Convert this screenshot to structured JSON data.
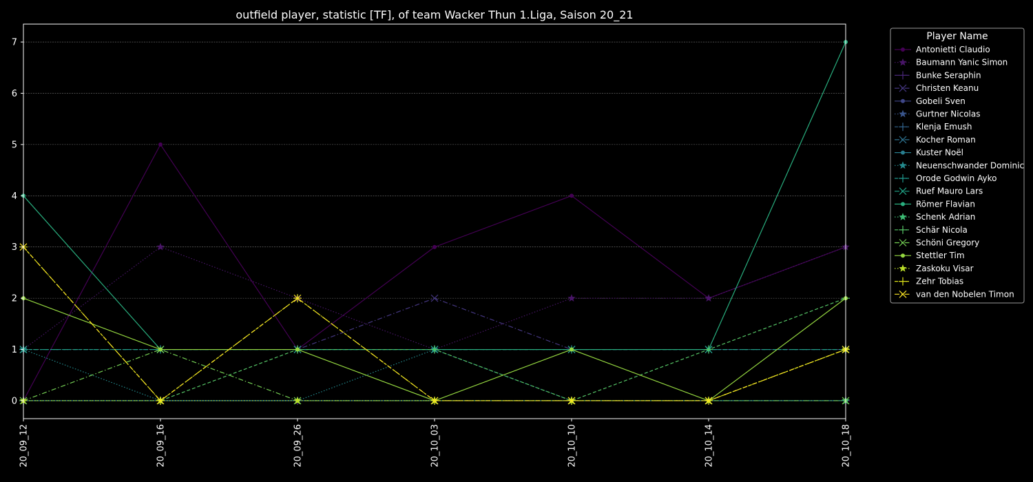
{
  "chart_data": {
    "type": "line",
    "title": "outfield player, statistic [TF], of team Wacker Thun 1.Liga, Saison 20_21",
    "xlabel": "",
    "ylabel": "",
    "categories": [
      "20_09_12",
      "20_09_16",
      "20_09_26",
      "20_10_03",
      "20_10_10",
      "20_10_14",
      "20_10_18"
    ],
    "ylim": [
      -0.35,
      7.35
    ],
    "yticks": [
      0,
      1,
      2,
      3,
      4,
      5,
      6,
      7
    ],
    "grid": "horizontal",
    "legend_title": "Player Name",
    "legend_position": "outside-right",
    "series": [
      {
        "name": "Antonietti Claudio",
        "values": [
          0,
          5,
          1,
          3,
          4,
          2,
          3
        ],
        "color": "#440154",
        "marker": "circle",
        "dash": "solid"
      },
      {
        "name": "Baumann Yanic Simon",
        "values": [
          1,
          3,
          2,
          1,
          2,
          2,
          3
        ],
        "color": "#481567",
        "marker": "star",
        "dash": "dotted"
      },
      {
        "name": "Bunke Seraphin",
        "values": [
          0,
          0,
          0,
          0,
          0,
          0,
          0
        ],
        "color": "#482677",
        "marker": "plus",
        "dash": "dashdot"
      },
      {
        "name": "Christen Keanu",
        "values": [
          1,
          1,
          1,
          2,
          1,
          1,
          1
        ],
        "color": "#453781",
        "marker": "x",
        "dash": "dashdot"
      },
      {
        "name": "Gobeli Sven",
        "values": [
          0,
          0,
          0,
          0,
          0,
          0,
          0
        ],
        "color": "#3f4788",
        "marker": "circle",
        "dash": "solid"
      },
      {
        "name": "Gurtner Nicolas",
        "values": [
          0,
          0,
          0,
          0,
          0,
          0,
          0
        ],
        "color": "#39558c",
        "marker": "star",
        "dash": "dotted"
      },
      {
        "name": "Klenja Emush",
        "values": [
          1,
          1,
          1,
          1,
          1,
          1,
          1
        ],
        "color": "#32648e",
        "marker": "plus",
        "dash": "dashed"
      },
      {
        "name": "Kocher Roman",
        "values": [
          1,
          1,
          1,
          1,
          1,
          1,
          1
        ],
        "color": "#2d718e",
        "marker": "x",
        "dash": "dashdot"
      },
      {
        "name": "Kuster Noël",
        "values": [
          0,
          0,
          0,
          0,
          0,
          0,
          0
        ],
        "color": "#287d8e",
        "marker": "circle",
        "dash": "solid"
      },
      {
        "name": "Neuenschwander Dominic",
        "values": [
          1,
          0,
          0,
          1,
          0,
          0,
          0
        ],
        "color": "#238a8d",
        "marker": "star",
        "dash": "dotted"
      },
      {
        "name": "Orode Godwin Ayko",
        "values": [
          1,
          1,
          1,
          1,
          1,
          1,
          1
        ],
        "color": "#1f968b",
        "marker": "plus",
        "dash": "dashed"
      },
      {
        "name": "Ruef Mauro Lars",
        "values": [
          1,
          1,
          1,
          1,
          1,
          1,
          1
        ],
        "color": "#20a386",
        "marker": "x",
        "dash": "dashdot"
      },
      {
        "name": "Römer Flavian",
        "values": [
          4,
          1,
          1,
          1,
          1,
          1,
          7
        ],
        "color": "#29af7f",
        "marker": "circle",
        "dash": "solid"
      },
      {
        "name": "Schenk Adrian",
        "values": [
          0,
          0,
          0,
          0,
          0,
          0,
          0
        ],
        "color": "#3dbc74",
        "marker": "star",
        "dash": "dotted"
      },
      {
        "name": "Schär Nicola",
        "values": [
          0,
          0,
          1,
          1,
          0,
          1,
          2
        ],
        "color": "#56c667",
        "marker": "plus",
        "dash": "dashed"
      },
      {
        "name": "Schöni Gregory",
        "values": [
          0,
          1,
          0,
          0,
          0,
          0,
          0
        ],
        "color": "#75d054",
        "marker": "x",
        "dash": "dashdot"
      },
      {
        "name": "Stettler Tim",
        "values": [
          2,
          1,
          1,
          0,
          1,
          0,
          2
        ],
        "color": "#95d840",
        "marker": "circle",
        "dash": "solid"
      },
      {
        "name": "Zaskoku Visar",
        "values": [
          0,
          0,
          0,
          0,
          0,
          0,
          1
        ],
        "color": "#bade28",
        "marker": "star",
        "dash": "dotted"
      },
      {
        "name": "Zehr Tobias",
        "values": [
          3,
          0,
          2,
          0,
          0,
          0,
          1
        ],
        "color": "#dde318",
        "marker": "plus",
        "dash": "dashed"
      },
      {
        "name": "van den Nobelen Timon",
        "values": [
          3,
          0,
          2,
          0,
          0,
          0,
          1
        ],
        "color": "#fde725",
        "marker": "x",
        "dash": "dashdot"
      }
    ]
  }
}
